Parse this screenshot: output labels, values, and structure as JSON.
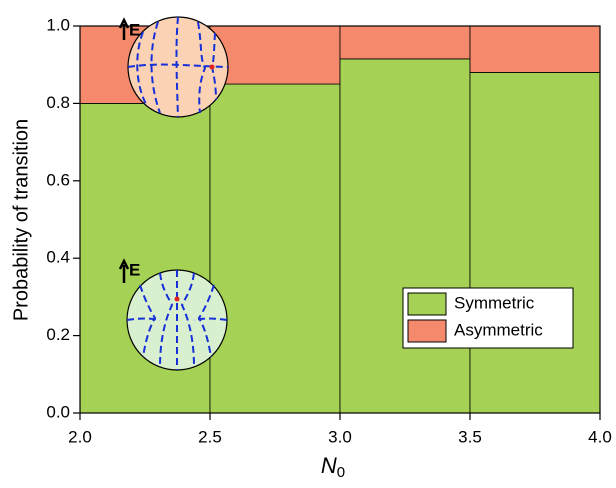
{
  "chart_data": {
    "type": "histogram",
    "xlabel": {
      "text": "N",
      "subscript": "0"
    },
    "ylabel": "Probability of transition",
    "bins": [
      2.0,
      2.5,
      3.0,
      3.5,
      4.0
    ],
    "stacked": true,
    "series": [
      {
        "name": "Symmetric",
        "color": "#a5d154",
        "values": [
          0.8,
          0.85,
          0.915,
          0.88
        ]
      },
      {
        "name": "Asymmetric",
        "color": "#f4896b",
        "values": [
          0.2,
          0.15,
          0.085,
          0.12
        ]
      }
    ],
    "xlim": [
      2.0,
      4.0
    ],
    "xticks": [
      {
        "value": 2,
        "label": "2.0"
      },
      {
        "value": 2.5,
        "label": "2.5"
      },
      {
        "value": 3,
        "label": "3.0"
      },
      {
        "value": 3.5,
        "label": "3.5"
      },
      {
        "value": 4,
        "label": "4.0"
      }
    ],
    "ylim": [
      0,
      1
    ],
    "yticks": [
      {
        "value": 0,
        "label": "0.0"
      },
      0.2,
      0.4,
      0.6,
      0.8,
      {
        "value": 1,
        "label": "1.0"
      }
    ],
    "legend": "lower-right",
    "annotations": [
      "E",
      "E"
    ]
  }
}
